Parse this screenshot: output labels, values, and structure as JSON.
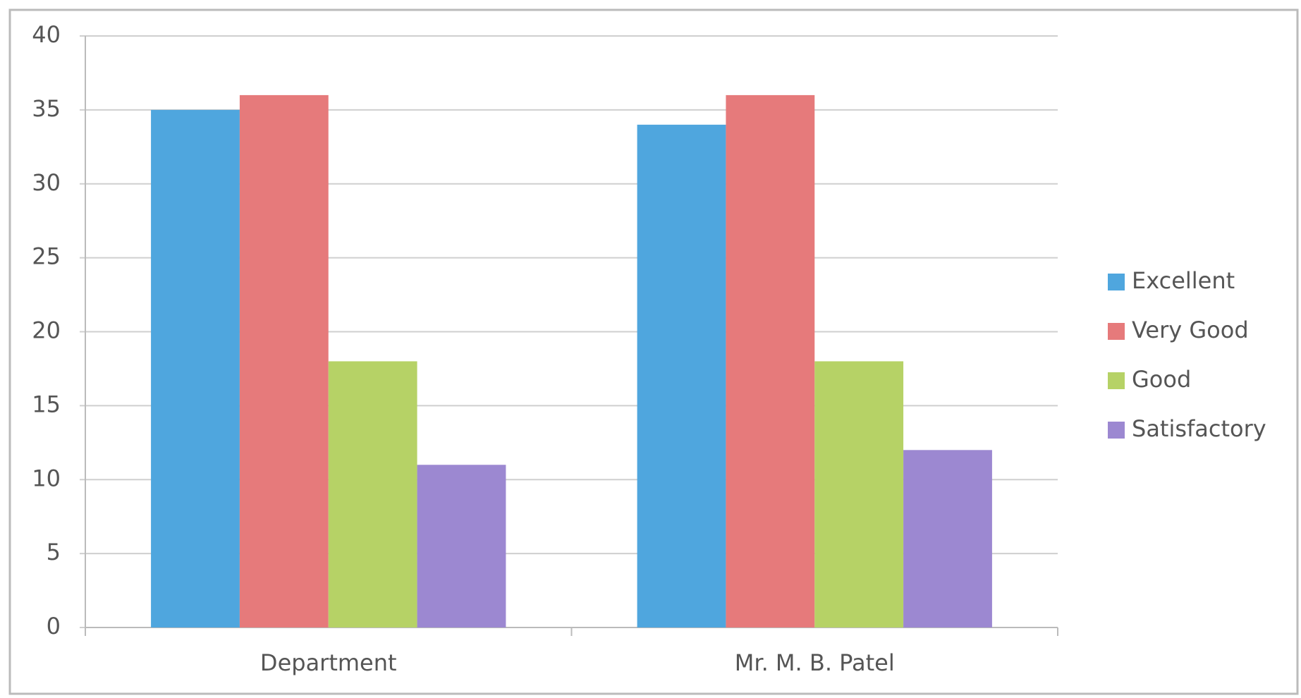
{
  "chart_data": {
    "type": "bar",
    "categories": [
      "Department",
      "Mr. M. B. Patel"
    ],
    "series": [
      {
        "name": "Excellent",
        "color": "#4fa6de",
        "values": [
          35,
          34
        ]
      },
      {
        "name": "Very Good",
        "color": "#e67a7b",
        "values": [
          36,
          36
        ]
      },
      {
        "name": "Good",
        "color": "#b6d266",
        "values": [
          18,
          18
        ]
      },
      {
        "name": "Satisfactory",
        "color": "#9c88d1",
        "values": [
          11,
          12
        ]
      }
    ],
    "ylim": [
      0,
      40
    ],
    "yticks": [
      0,
      5,
      10,
      15,
      20,
      25,
      30,
      35,
      40
    ],
    "grid": true,
    "legend": "right"
  }
}
